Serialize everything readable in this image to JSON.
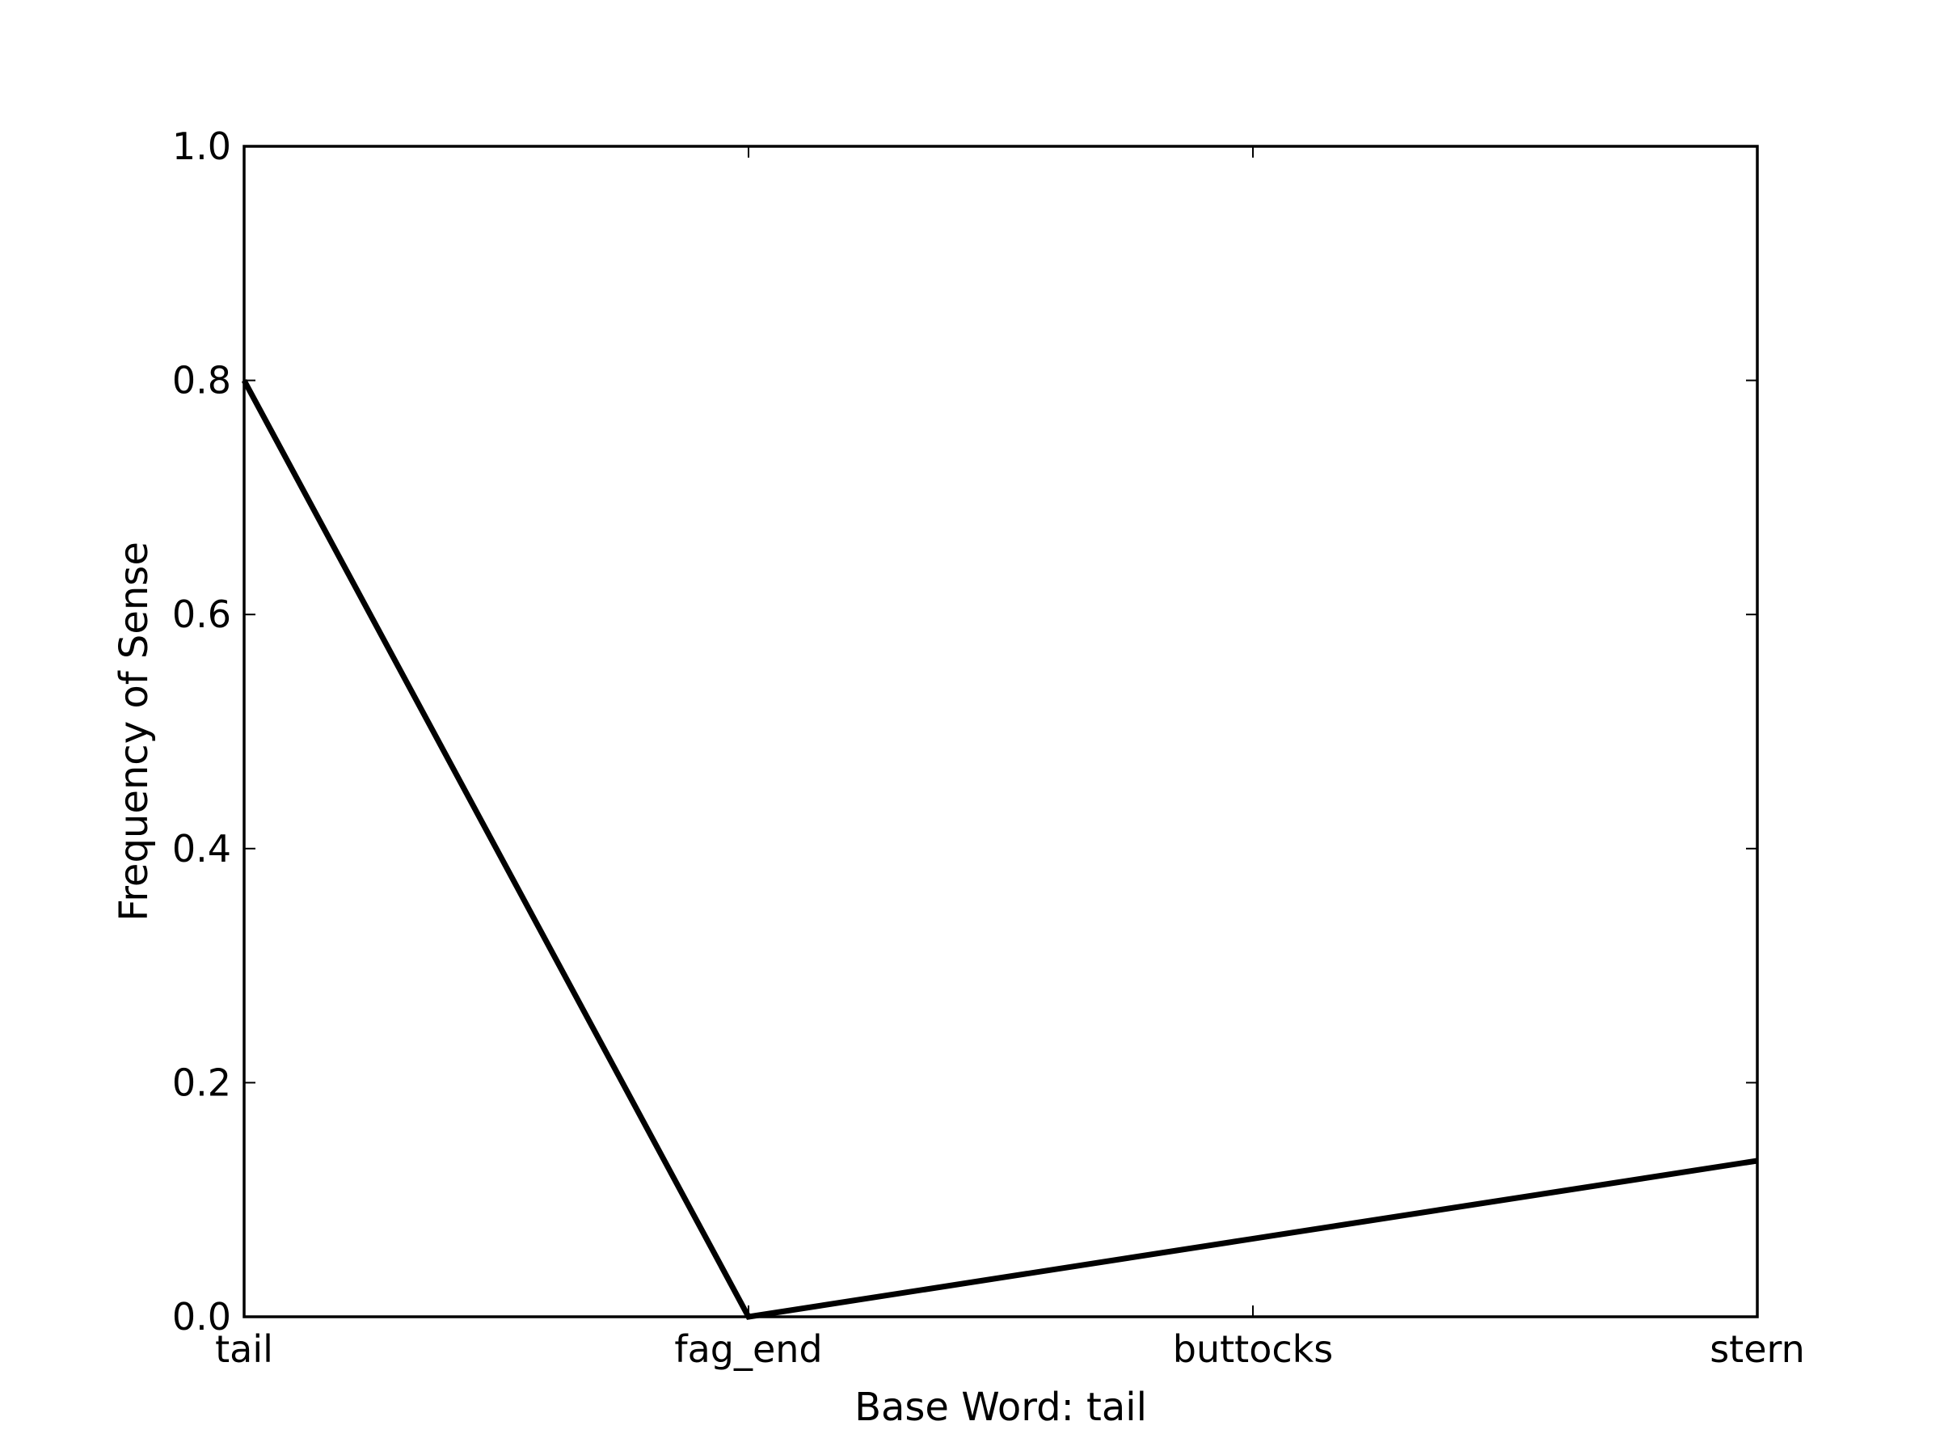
{
  "chart_data": {
    "type": "line",
    "categories": [
      "tail",
      "fag_end",
      "buttocks",
      "stern"
    ],
    "series": [
      {
        "values": [
          0.8,
          0.0,
          0.0667,
          0.1333
        ],
        "color": "#000000"
      }
    ],
    "xlabel": "Base Word: tail",
    "ylabel": "Frequency of Sense",
    "ylim": [
      0.0,
      1.0
    ],
    "yticks": [
      "0.0",
      "0.2",
      "0.4",
      "0.6",
      "0.8",
      "1.0"
    ],
    "grid": false,
    "legend": "none"
  }
}
